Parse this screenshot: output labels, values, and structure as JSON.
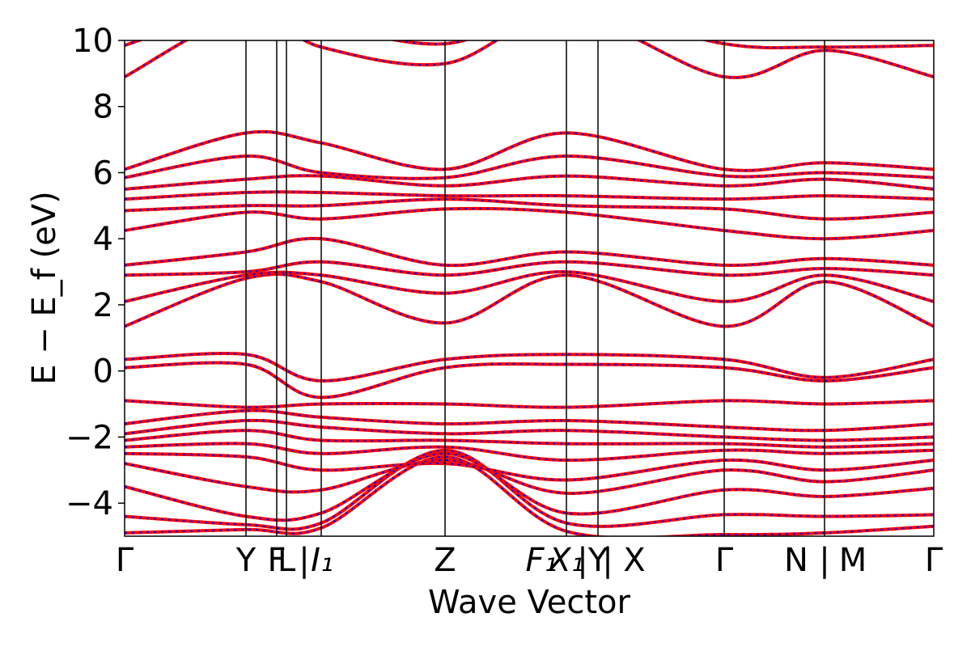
{
  "chart_data": {
    "type": "line",
    "xlabel": "Wave Vector",
    "ylabel": "E − E_f (eV)",
    "ylim": [
      -5,
      10
    ],
    "yticks": [
      -4,
      -2,
      0,
      2,
      4,
      6,
      8,
      10
    ],
    "ytick_labels": [
      "−4",
      "−2",
      "0",
      "2",
      "4",
      "6",
      "8",
      "10"
    ],
    "xlim": [
      0,
      1
    ],
    "grid": false,
    "kpath_ticks": [
      {
        "label": "Γ",
        "x": 0.0
      },
      {
        "label": "Y",
        "x": 0.15
      },
      {
        "label": "F",
        "x": 0.188
      },
      {
        "label": "L",
        "x": 0.2
      },
      {
        "label": "|",
        "x": 0.222
      },
      {
        "label": "I₁",
        "x": 0.244
      },
      {
        "label": "Z",
        "x": 0.396
      },
      {
        "label": "F₁",
        "x": 0.515
      },
      {
        "label": "X₁",
        "x": 0.546
      },
      {
        "label": "|",
        "x": 0.566
      },
      {
        "label": "Y",
        "x": 0.585
      },
      {
        "label": "|",
        "x": 0.597
      },
      {
        "label": "X",
        "x": 0.63
      },
      {
        "label": "Γ",
        "x": 0.741
      },
      {
        "label": "N",
        "x": 0.83
      },
      {
        "label": "|",
        "x": 0.865
      },
      {
        "label": "M",
        "x": 0.9
      },
      {
        "label": "Γ",
        "x": 1.0
      }
    ],
    "vlines": [
      0.15,
      0.188,
      0.2,
      0.243,
      0.396,
      0.546,
      0.585,
      0.741,
      0.865
    ],
    "bands": [
      {
        "x": [
          0,
          0.15,
          0.243,
          0.396,
          0.546,
          0.741,
          0.865,
          1
        ],
        "y": [
          -4.9,
          -4.8,
          -4.75,
          -2.6,
          -4.85,
          -4.95,
          -4.9,
          -4.7
        ]
      },
      {
        "x": [
          0,
          0.15,
          0.243,
          0.396,
          0.546,
          0.741,
          0.865,
          1
        ],
        "y": [
          -4.4,
          -4.65,
          -4.6,
          -2.4,
          -4.6,
          -4.35,
          -4.4,
          -4.35
        ]
      },
      {
        "x": [
          0,
          0.15,
          0.243,
          0.396,
          0.546,
          0.741,
          0.865,
          1
        ],
        "y": [
          -3.5,
          -4.4,
          -4.3,
          -2.5,
          -4.3,
          -3.6,
          -3.8,
          -3.55
        ]
      },
      {
        "x": [
          0,
          0.15,
          0.243,
          0.396,
          0.546,
          0.741,
          0.865,
          1
        ],
        "y": [
          -2.8,
          -3.5,
          -3.6,
          -2.7,
          -3.7,
          -3.0,
          -3.35,
          -3.0
        ]
      },
      {
        "x": [
          0,
          0.15,
          0.243,
          0.396,
          0.546,
          0.741,
          0.865,
          1
        ],
        "y": [
          -2.5,
          -2.6,
          -3.0,
          -2.8,
          -3.3,
          -2.7,
          -3.0,
          -2.7
        ]
      },
      {
        "x": [
          0,
          0.15,
          0.243,
          0.396,
          0.546,
          0.741,
          0.865,
          1
        ],
        "y": [
          -2.3,
          -2.2,
          -2.5,
          -2.3,
          -2.7,
          -2.4,
          -2.5,
          -2.4
        ]
      },
      {
        "x": [
          0,
          0.15,
          0.243,
          0.396,
          0.546,
          0.741,
          0.865,
          1
        ],
        "y": [
          -2.1,
          -1.8,
          -2.1,
          -2.1,
          -2.2,
          -2.2,
          -2.3,
          -2.2
        ]
      },
      {
        "x": [
          0,
          0.15,
          0.243,
          0.396,
          0.546,
          0.741,
          0.865,
          1
        ],
        "y": [
          -1.9,
          -1.5,
          -1.7,
          -1.9,
          -1.8,
          -2.0,
          -2.1,
          -2.0
        ]
      },
      {
        "x": [
          0,
          0.15,
          0.243,
          0.396,
          0.546,
          0.741,
          0.865,
          1
        ],
        "y": [
          -1.6,
          -1.2,
          -1.4,
          -1.6,
          -1.5,
          -1.7,
          -1.8,
          -1.6
        ]
      },
      {
        "x": [
          0,
          0.15,
          0.243,
          0.396,
          0.546,
          0.741,
          0.865,
          1
        ],
        "y": [
          -0.9,
          -1.1,
          -1.0,
          -1.0,
          -1.1,
          -0.9,
          -1.0,
          -0.9
        ]
      },
      {
        "x": [
          0,
          0.15,
          0.243,
          0.396,
          0.546,
          0.741,
          0.865,
          1
        ],
        "y": [
          0.1,
          0.2,
          -0.8,
          0.1,
          0.2,
          0.1,
          -0.3,
          0.1
        ]
      },
      {
        "x": [
          0,
          0.15,
          0.243,
          0.396,
          0.546,
          0.741,
          0.865,
          1
        ],
        "y": [
          0.35,
          0.5,
          -0.3,
          0.35,
          0.5,
          0.35,
          -0.2,
          0.35
        ]
      },
      {
        "x": [
          0,
          0.15,
          0.243,
          0.396,
          0.546,
          0.741,
          0.865,
          1
        ],
        "y": [
          1.35,
          2.8,
          2.7,
          1.45,
          2.9,
          1.35,
          2.7,
          1.35
        ]
      },
      {
        "x": [
          0,
          0.15,
          0.243,
          0.396,
          0.546,
          0.741,
          0.865,
          1
        ],
        "y": [
          2.1,
          2.9,
          2.9,
          2.35,
          3.0,
          2.1,
          2.9,
          2.1
        ]
      },
      {
        "x": [
          0,
          0.15,
          0.243,
          0.396,
          0.546,
          0.741,
          0.865,
          1
        ],
        "y": [
          2.9,
          3.0,
          3.3,
          2.9,
          3.3,
          2.9,
          3.1,
          2.9
        ]
      },
      {
        "x": [
          0,
          0.15,
          0.243,
          0.396,
          0.546,
          0.741,
          0.865,
          1
        ],
        "y": [
          3.2,
          3.6,
          4.0,
          3.2,
          3.6,
          3.2,
          3.4,
          3.2
        ]
      },
      {
        "x": [
          0,
          0.15,
          0.243,
          0.396,
          0.546,
          0.741,
          0.865,
          1
        ],
        "y": [
          4.25,
          4.8,
          4.6,
          4.9,
          4.8,
          4.25,
          4.0,
          4.25
        ]
      },
      {
        "x": [
          0,
          0.15,
          0.243,
          0.396,
          0.546,
          0.741,
          0.865,
          1
        ],
        "y": [
          4.85,
          5.0,
          5.0,
          5.2,
          5.0,
          4.9,
          4.6,
          4.8
        ]
      },
      {
        "x": [
          0,
          0.15,
          0.243,
          0.396,
          0.546,
          0.741,
          0.865,
          1
        ],
        "y": [
          5.2,
          5.4,
          5.4,
          5.3,
          5.3,
          5.2,
          5.3,
          5.2
        ]
      },
      {
        "x": [
          0,
          0.15,
          0.243,
          0.396,
          0.546,
          0.741,
          0.865,
          1
        ],
        "y": [
          5.5,
          5.8,
          5.9,
          5.6,
          5.9,
          5.6,
          5.8,
          5.5
        ]
      },
      {
        "x": [
          0,
          0.15,
          0.243,
          0.396,
          0.546,
          0.741,
          0.865,
          1
        ],
        "y": [
          5.85,
          6.5,
          6.0,
          5.85,
          6.5,
          5.9,
          6.0,
          5.85
        ]
      },
      {
        "x": [
          0,
          0.15,
          0.243,
          0.396,
          0.546,
          0.741,
          0.865,
          1
        ],
        "y": [
          6.1,
          7.2,
          6.9,
          6.1,
          7.2,
          6.1,
          6.3,
          6.1
        ]
      },
      {
        "x": [
          0,
          0.15,
          0.243,
          0.396,
          0.546,
          0.741,
          0.865,
          1
        ],
        "y": [
          8.9,
          10.8,
          9.8,
          9.3,
          10.8,
          8.9,
          9.7,
          8.9
        ]
      },
      {
        "x": [
          0,
          0.15,
          0.243,
          0.396,
          0.546,
          0.741,
          0.865,
          1
        ],
        "y": [
          9.85,
          11.0,
          10.5,
          9.9,
          11.0,
          9.9,
          9.8,
          9.85
        ]
      }
    ],
    "series_colors": {
      "solid": "#ff0000",
      "dashed": "#0000ff"
    }
  }
}
